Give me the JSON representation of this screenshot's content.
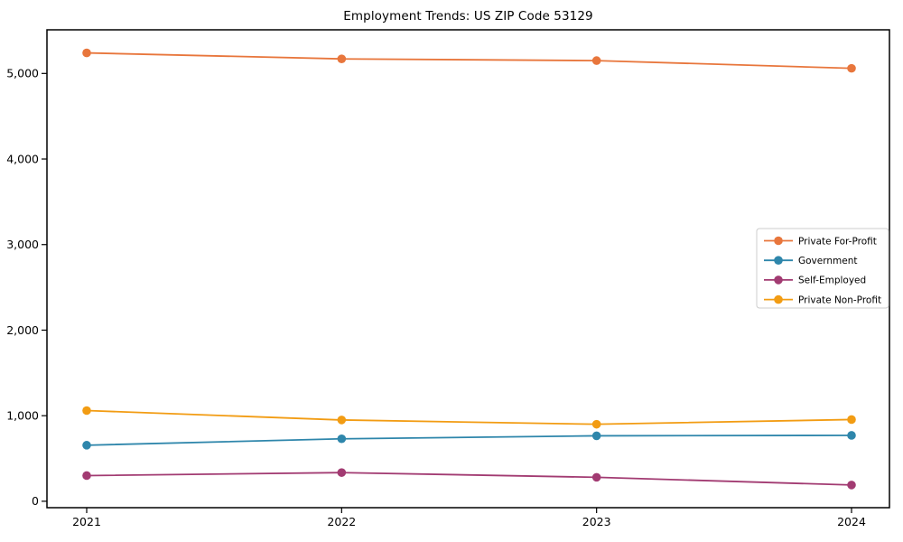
{
  "chart_data": {
    "type": "line",
    "title": "Employment Trends: US ZIP Code 53129",
    "categories": [
      "2021",
      "2022",
      "2023",
      "2024"
    ],
    "series": [
      {
        "name": "Private For-Profit",
        "color": "#E8763C",
        "values": [
          5240,
          5170,
          5150,
          5060
        ]
      },
      {
        "name": "Government",
        "color": "#2E86AB",
        "values": [
          655,
          730,
          765,
          770
        ]
      },
      {
        "name": "Self-Employed",
        "color": "#A23B72",
        "values": [
          300,
          335,
          280,
          190
        ]
      },
      {
        "name": "Private Non-Profit",
        "color": "#F29C13",
        "values": [
          1060,
          950,
          900,
          955
        ]
      }
    ],
    "xlabel": "",
    "ylabel": "",
    "ylim": [
      -75,
      5510
    ],
    "yticks": [
      0,
      1000,
      2000,
      3000,
      4000,
      5000
    ],
    "ytick_labels": [
      "0",
      "1,000",
      "2,000",
      "3,000",
      "4,000",
      "5,000"
    ],
    "grid": false,
    "marker": "circle",
    "legend_position": "center right",
    "background_color": "#ffffff",
    "axes_color": "#000000",
    "legend_border_color": "#cccccc"
  }
}
